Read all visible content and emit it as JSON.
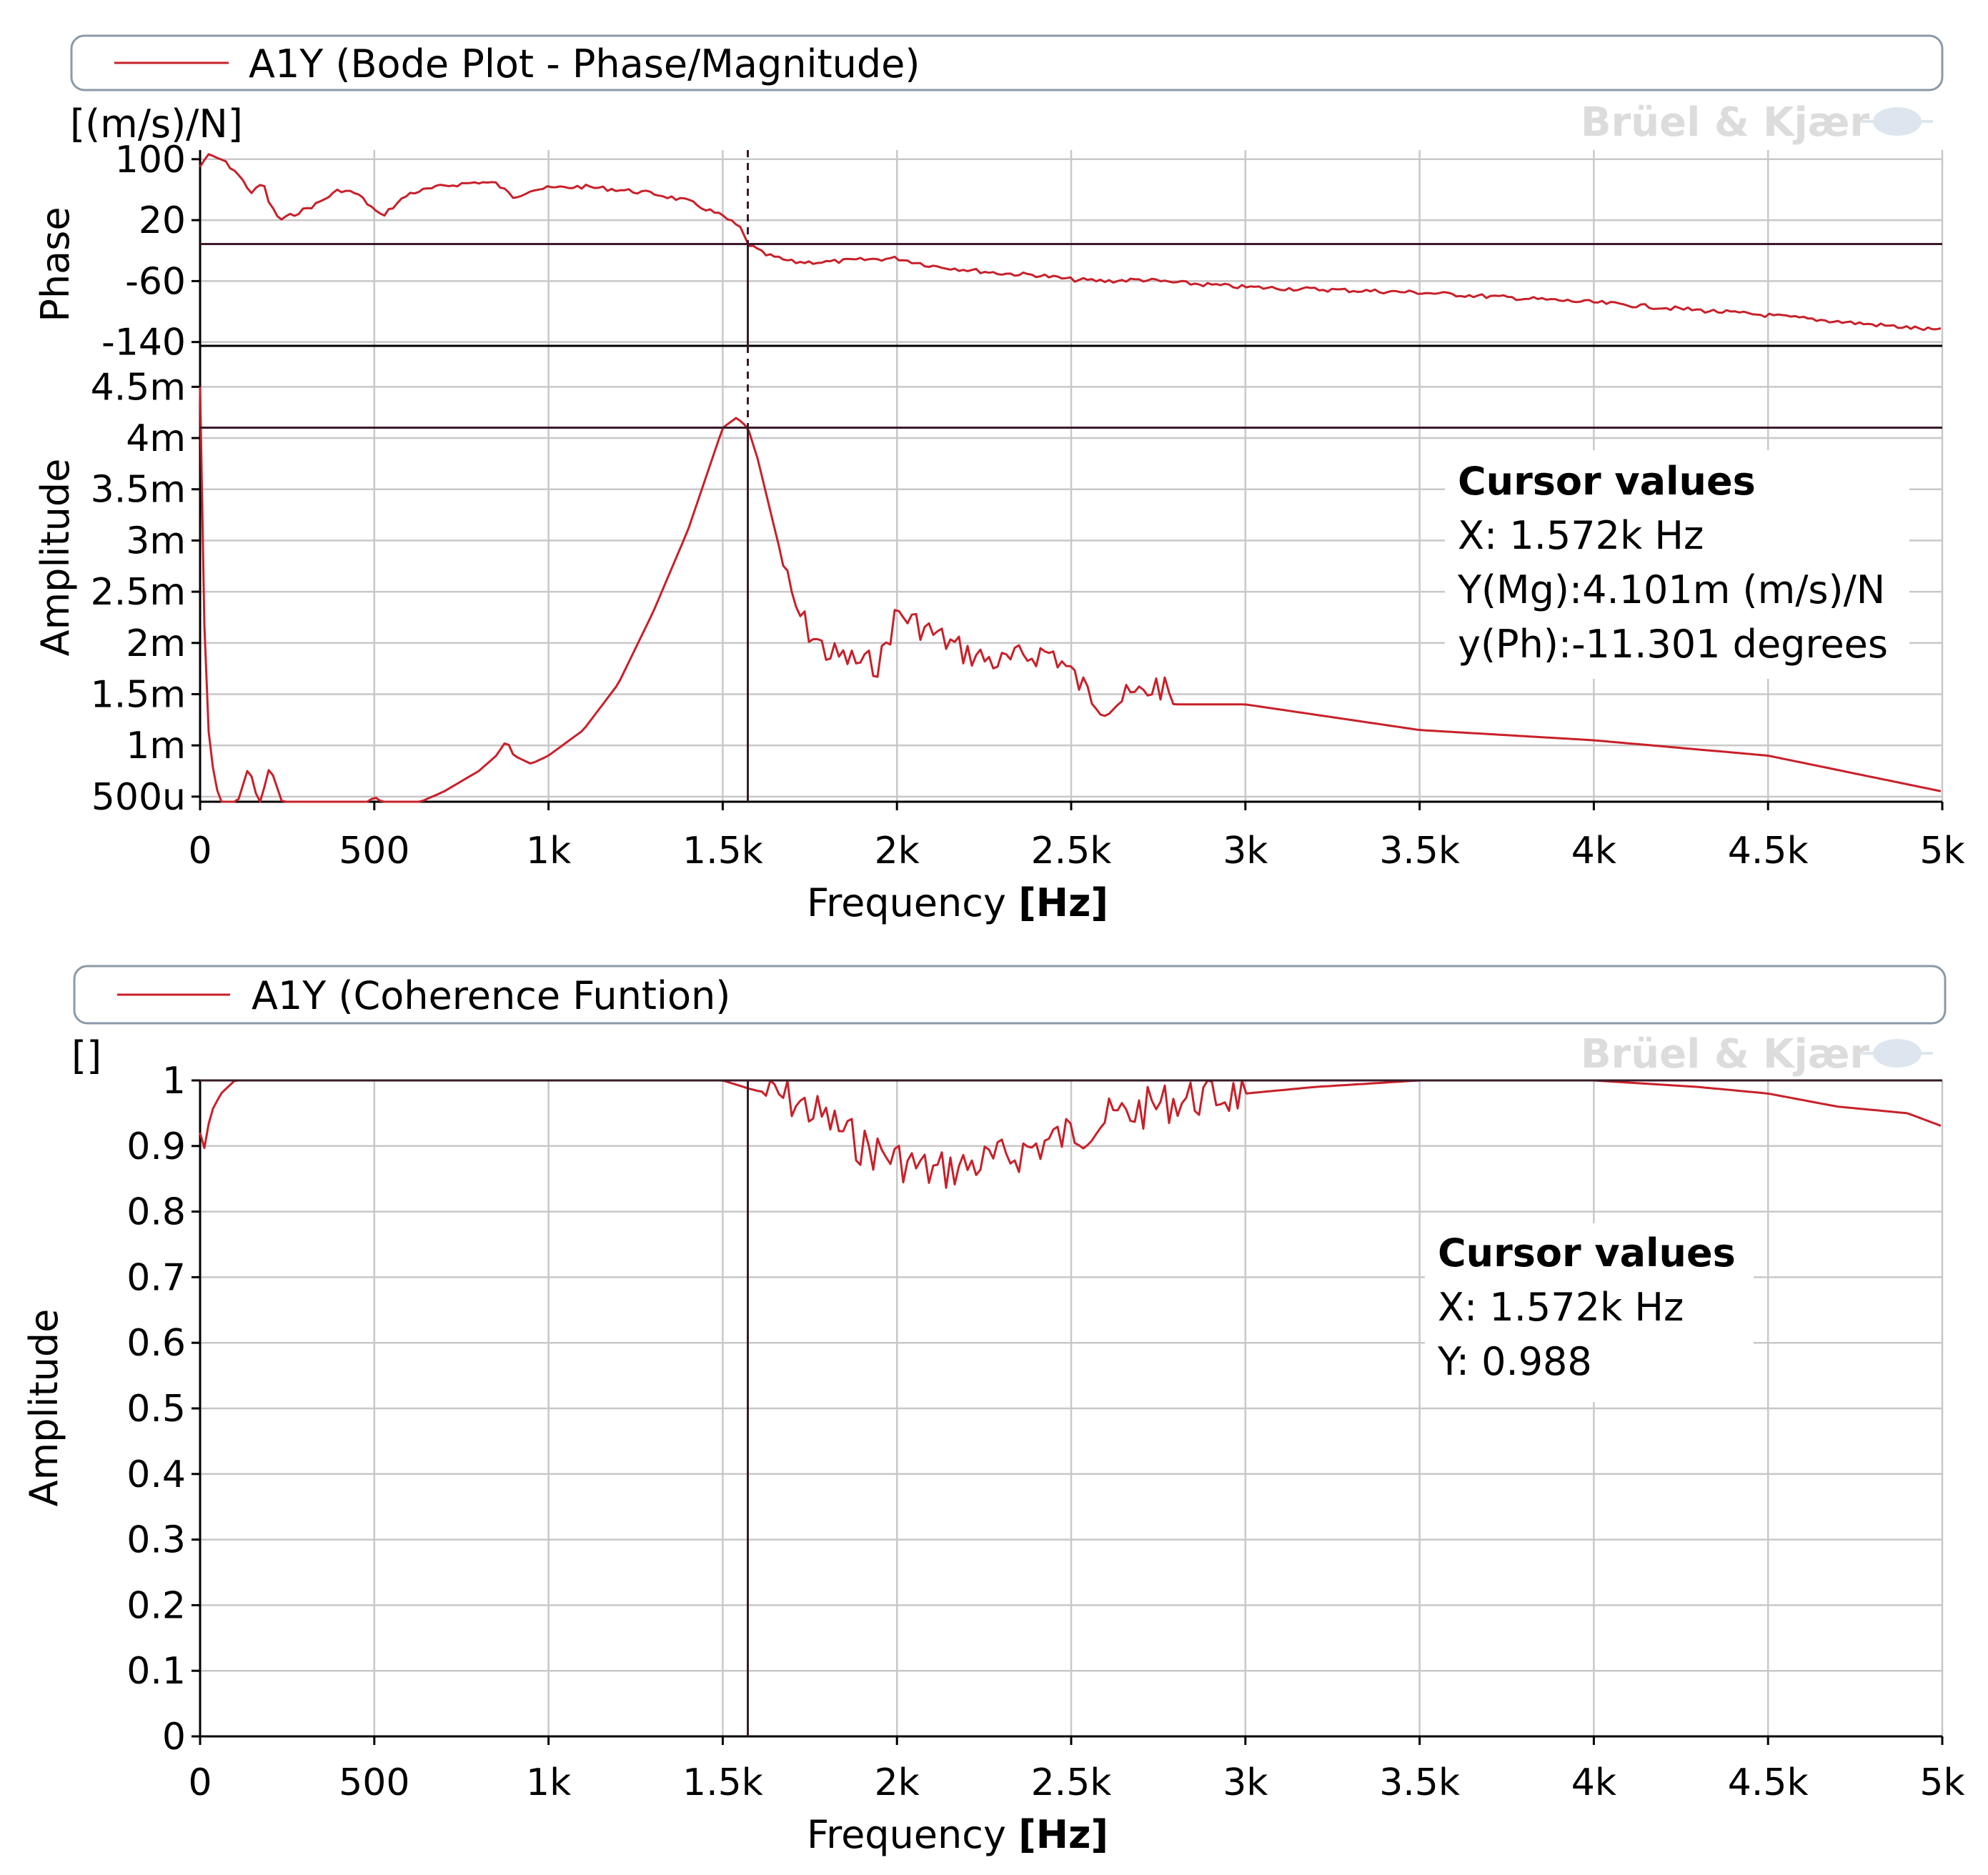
{
  "brand": "Brüel & Kjær",
  "colors": {
    "trace": "#c8202a",
    "grid": "#c8c8c8",
    "legend_border": "#8a9aa8",
    "cursor": "#3a1a2a"
  },
  "x_axis": {
    "ticks": [
      0,
      500,
      1000,
      1500,
      2000,
      2500,
      3000,
      3500,
      4000,
      4500,
      5000
    ],
    "tick_labels": [
      "0",
      "500",
      "1k",
      "1.5k",
      "2k",
      "2.5k",
      "3k",
      "3.5k",
      "4k",
      "4.5k",
      "5k"
    ],
    "label": "Frequency",
    "unit": "[Hz]"
  },
  "cursor_x_hz": 1572,
  "bode": {
    "legend": "A1Y (Bode Plot - Phase/Magnitude)",
    "units": "[(m/s)/N]",
    "phase_label": "Phase",
    "amplitude_label": "Amplitude",
    "phase_ticks": [
      "100",
      "20",
      "-60",
      "-140"
    ],
    "amplitude_ticks": [
      "4.5m",
      "4m",
      "3.5m",
      "3m",
      "2.5m",
      "2m",
      "1.5m",
      "1m",
      "500u"
    ],
    "cursor": {
      "title": "Cursor values",
      "x": "X: 1.572k Hz",
      "ymg": "Y(Mg):4.101m (m/s)/N",
      "yph": "y(Ph):-11.301 degrees"
    }
  },
  "coherence": {
    "legend": "A1Y (Coherence Funtion)",
    "units": "[]",
    "amplitude_label": "Amplitude",
    "y_ticks": [
      "1",
      "0.9",
      "0.8",
      "0.7",
      "0.6",
      "0.5",
      "0.4",
      "0.3",
      "0.2",
      "0.1",
      "0"
    ],
    "cursor": {
      "title": "Cursor values",
      "x": "X: 1.572k Hz",
      "y": "Y: 0.988"
    }
  },
  "chart_data": [
    {
      "type": "line",
      "title": "A1Y (Bode Plot - Phase/Magnitude) - Phase",
      "xlabel": "Frequency [Hz]",
      "ylabel": "Phase",
      "xlim": [
        0,
        5000
      ],
      "ylim": [
        -140,
        110
      ],
      "x": [
        0,
        20,
        60,
        100,
        150,
        180,
        200,
        230,
        280,
        330,
        400,
        450,
        520,
        560,
        600,
        700,
        800,
        850,
        900,
        950,
        1000,
        1100,
        1200,
        1300,
        1400,
        1450,
        1500,
        1550,
        1572,
        1620,
        1700,
        1800,
        1900,
        2000,
        2100,
        2200,
        2300,
        2400,
        2500,
        2600,
        2700,
        2800,
        3000,
        3500,
        4000,
        4500,
        5000
      ],
      "values": [
        90,
        105,
        100,
        85,
        55,
        70,
        40,
        20,
        30,
        40,
        60,
        55,
        25,
        40,
        55,
        65,
        70,
        68,
        50,
        60,
        62,
        64,
        60,
        55,
        45,
        35,
        25,
        10,
        -11.3,
        -25,
        -35,
        -35,
        -32,
        -30,
        -40,
        -45,
        -50,
        -52,
        -58,
        -60,
        -58,
        -62,
        -68,
        -75,
        -88,
        -105,
        -125
      ],
      "cursor": {
        "x": 1572,
        "y": -11.301
      }
    },
    {
      "type": "line",
      "title": "A1Y (Bode Plot - Phase/Magnitude) - Amplitude",
      "xlabel": "Frequency [Hz]",
      "ylabel": "Amplitude [(m/s)/N]",
      "xlim": [
        0,
        5000
      ],
      "ylim": [
        0.0003,
        0.0048
      ],
      "x": [
        0,
        12,
        25,
        40,
        60,
        80,
        100,
        140,
        170,
        200,
        240,
        300,
        400,
        450,
        500,
        550,
        600,
        700,
        800,
        850,
        880,
        900,
        950,
        1000,
        1100,
        1200,
        1300,
        1400,
        1450,
        1500,
        1540,
        1572,
        1600,
        1650,
        1700,
        1750,
        1800,
        1900,
        1950,
        2000,
        2100,
        2200,
        2300,
        2400,
        2450,
        2500,
        2550,
        2600,
        2700,
        2750,
        2800,
        3000,
        3500,
        4000,
        4500,
        5000
      ],
      "values": [
        0.0045,
        0.0022,
        0.0011,
        0.0007,
        0.0004,
        0.00035,
        0.00036,
        0.0008,
        0.0004,
        0.0008,
        0.0004,
        0.00028,
        0.00025,
        0.00035,
        0.0005,
        0.00038,
        0.0004,
        0.00055,
        0.00075,
        0.0009,
        0.00105,
        0.0009,
        0.00082,
        0.0009,
        0.00115,
        0.0016,
        0.0023,
        0.0031,
        0.0036,
        0.0041,
        0.0042,
        0.004101,
        0.0038,
        0.0031,
        0.0024,
        0.0021,
        0.0019,
        0.0018,
        0.0018,
        0.0023,
        0.0021,
        0.0019,
        0.0018,
        0.0019,
        0.0019,
        0.0017,
        0.0015,
        0.0014,
        0.0015,
        0.0016,
        0.0014,
        0.0014,
        0.00115,
        0.00105,
        0.0009,
        0.00055
      ],
      "cursor": {
        "x": 1572,
        "y": 0.004101
      }
    },
    {
      "type": "line",
      "title": "A1Y (Coherence Funtion)",
      "xlabel": "Frequency [Hz]",
      "ylabel": "Amplitude",
      "xlim": [
        0,
        5000
      ],
      "ylim": [
        0,
        1
      ],
      "x": [
        0,
        10,
        30,
        60,
        100,
        150,
        300,
        500,
        1000,
        1400,
        1500,
        1572,
        1700,
        1800,
        1900,
        2000,
        2100,
        2200,
        2300,
        2400,
        2500,
        2600,
        2800,
        3000,
        3200,
        3500,
        4000,
        4300,
        4500,
        4700,
        4900,
        5000
      ],
      "values": [
        0.92,
        0.89,
        0.95,
        0.98,
        1.0,
        1.0,
        1.0,
        1.0,
        1.0,
        1.0,
        1.0,
        0.988,
        0.97,
        0.94,
        0.9,
        0.88,
        0.86,
        0.87,
        0.88,
        0.9,
        0.92,
        0.94,
        0.97,
        0.98,
        0.99,
        1.0,
        1.0,
        0.99,
        0.98,
        0.96,
        0.95,
        0.93
      ],
      "cursor": {
        "x": 1572,
        "y": 0.988
      }
    }
  ]
}
